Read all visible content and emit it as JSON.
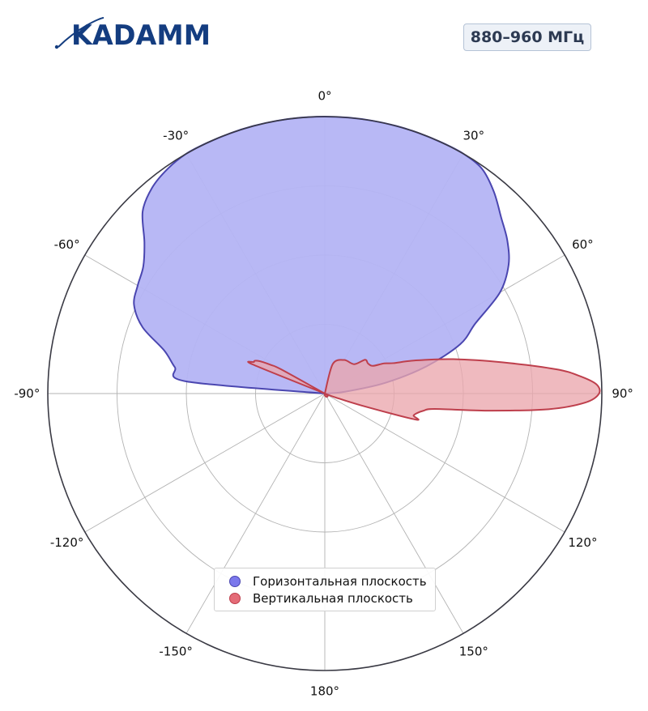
{
  "logo": {
    "text": "KADAMM"
  },
  "badge": {
    "label": "880–960 МГц"
  },
  "colors": {
    "horizontal_fill": "#b4b4f4",
    "horizontal_line": "#4a46b0",
    "vertical_fill": "#eba6ad",
    "vertical_line": "#be3f4c",
    "grid": "#b3b3b3",
    "frame": "#3a3a44"
  },
  "chart_data": {
    "type": "polar",
    "angular_labels": [
      "0°",
      "30°",
      "60°",
      "90°",
      "120°",
      "150°",
      "180°",
      "-150°",
      "-120°",
      "-90°",
      "-60°",
      "-30°"
    ],
    "angular_ticks_deg": [
      0,
      30,
      60,
      90,
      120,
      150,
      180,
      -150,
      -120,
      -90,
      -60,
      -30
    ],
    "radial_range": [
      0,
      1
    ],
    "radial_gridlines": [
      0.25,
      0.5,
      0.75
    ],
    "radial_labels_shown": false,
    "direction": "clockwise",
    "zero_location": "top",
    "grid": true,
    "legend_position": "bottom-center",
    "series": [
      {
        "name": "Горизонтальная плоскость",
        "color": "#4a46b0",
        "theta_deg": [
          -90,
          -85,
          -80,
          -75,
          -70,
          -65,
          -60,
          -55,
          -50,
          -45,
          -40,
          -35,
          -30,
          -25,
          -20,
          -15,
          -10,
          -5,
          0,
          5,
          10,
          15,
          20,
          25,
          30,
          35,
          40,
          45,
          50,
          55,
          60,
          65,
          70,
          75,
          80,
          85,
          90
        ],
        "r": [
          0.0,
          0.5,
          0.55,
          0.6,
          0.7,
          0.76,
          0.78,
          0.8,
          0.85,
          0.93,
          0.97,
          0.99,
          1.0,
          1.0,
          1.0,
          1.0,
          1.0,
          1.0,
          1.0,
          1.0,
          1.0,
          1.0,
          1.0,
          1.0,
          1.0,
          0.99,
          0.95,
          0.9,
          0.86,
          0.81,
          0.73,
          0.6,
          0.52,
          0.38,
          0.22,
          0.07,
          0.0
        ]
      },
      {
        "name": "Вертикальная плоскость",
        "color": "#be3f4c",
        "theta_deg": [
          -70,
          -68,
          -66,
          -65,
          -64,
          -63,
          -62,
          -61,
          -60,
          0,
          15,
          30,
          45,
          50,
          55,
          60,
          63,
          66,
          70,
          75,
          80,
          84,
          86,
          88,
          90,
          92,
          94,
          96,
          98,
          100,
          102,
          104,
          106,
          108,
          110,
          115
        ],
        "r": [
          0.0,
          0.28,
          0.28,
          0.28,
          0.27,
          0.25,
          0.22,
          0.18,
          0.0,
          0.0,
          0.11,
          0.14,
          0.15,
          0.19,
          0.19,
          0.2,
          0.24,
          0.27,
          0.35,
          0.48,
          0.65,
          0.84,
          0.92,
          0.98,
          0.99,
          0.94,
          0.81,
          0.59,
          0.4,
          0.36,
          0.34,
          0.33,
          0.34,
          0.14,
          0.04,
          0.0
        ]
      }
    ]
  }
}
